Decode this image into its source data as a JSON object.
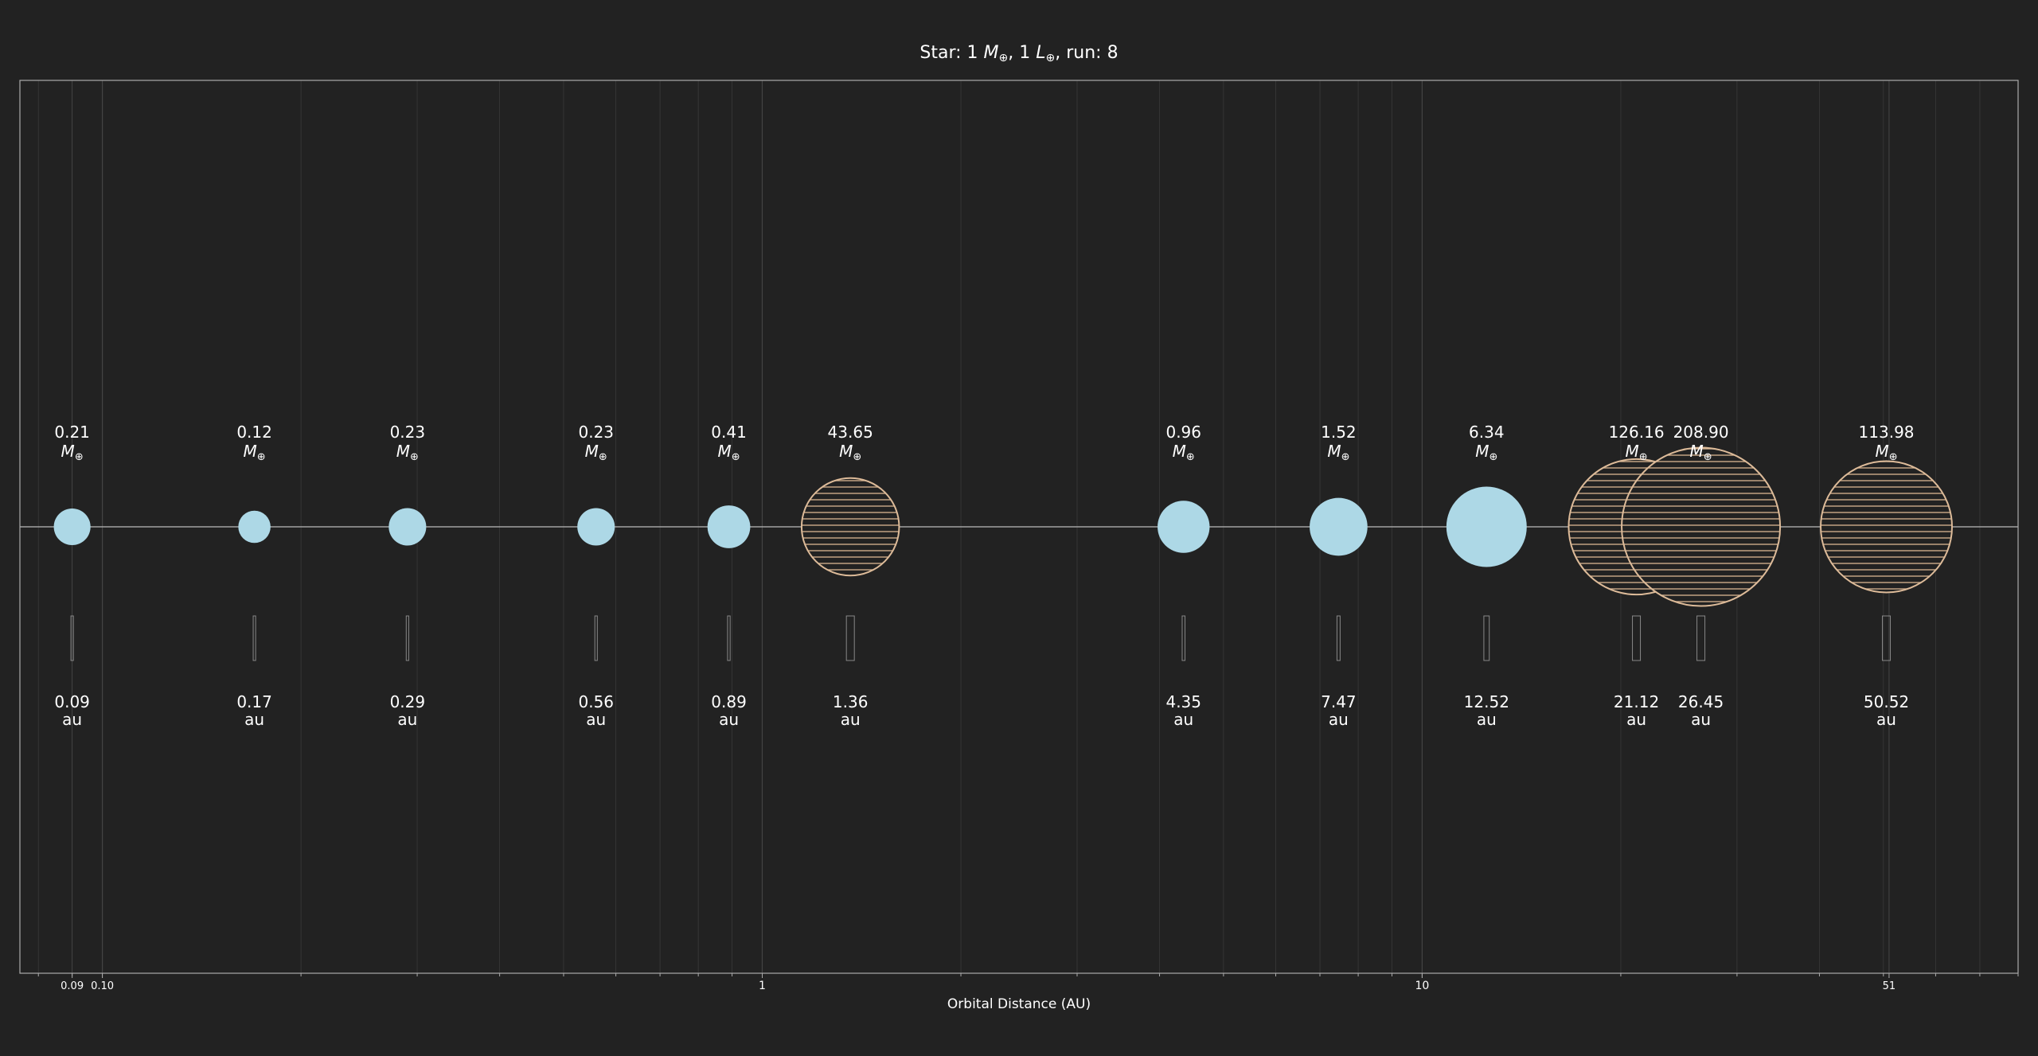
{
  "colors": {
    "background": "#222222",
    "axes_frame": "#aaaaaa",
    "grid": "#3a3a3a",
    "text": "#ffffff",
    "rocky_planet": "#add8e6",
    "giant_planet_outline": "#ddbb99",
    "giant_planet_hatch": "#ccaa88"
  },
  "chart_data": {
    "type": "scatter",
    "title": {
      "prefix": "Star: 1 ",
      "mass_symbol": "M",
      "sun_symbol": "⊕",
      "mid": ", 1 ",
      "lum_symbol": "L",
      "suffix": ", run: 8"
    },
    "xlabel": "Orbital Distance (AU)",
    "x_scale": "log",
    "xlim": [
      0.075,
      80
    ],
    "grid": true,
    "x_ticks": [
      {
        "value": 0.09,
        "label": "0.09",
        "major": false
      },
      {
        "value": 0.1,
        "label": "0.10",
        "major": false
      },
      {
        "value": 1,
        "label": "1",
        "major": true
      },
      {
        "value": 10,
        "label": "10",
        "major": true
      },
      {
        "value": 51,
        "label": "51",
        "major": false
      }
    ],
    "mass_unit_symbol": "M",
    "mass_unit_sub": "⊕",
    "distance_unit": "au",
    "planets": [
      {
        "distance_au": 0.09,
        "distance_label": "0.09",
        "mass_label": "0.21",
        "type": "rocky"
      },
      {
        "distance_au": 0.17,
        "distance_label": "0.17",
        "mass_label": "0.12",
        "type": "rocky"
      },
      {
        "distance_au": 0.29,
        "distance_label": "0.29",
        "mass_label": "0.23",
        "type": "rocky"
      },
      {
        "distance_au": 0.56,
        "distance_label": "0.56",
        "mass_label": "0.23",
        "type": "rocky"
      },
      {
        "distance_au": 0.89,
        "distance_label": "0.89",
        "mass_label": "0.41",
        "type": "rocky"
      },
      {
        "distance_au": 1.36,
        "distance_label": "1.36",
        "mass_label": "43.65",
        "type": "giant"
      },
      {
        "distance_au": 4.35,
        "distance_label": "4.35",
        "mass_label": "0.96",
        "type": "rocky"
      },
      {
        "distance_au": 7.47,
        "distance_label": "7.47",
        "mass_label": "1.52",
        "type": "rocky"
      },
      {
        "distance_au": 12.52,
        "distance_label": "12.52",
        "mass_label": "6.34",
        "type": "rocky"
      },
      {
        "distance_au": 21.12,
        "distance_label": "21.12",
        "mass_label": "126.16",
        "type": "giant"
      },
      {
        "distance_au": 26.45,
        "distance_label": "26.45",
        "mass_label": "208.90",
        "type": "giant"
      },
      {
        "distance_au": 50.52,
        "distance_label": "50.52",
        "mass_label": "113.98",
        "type": "giant"
      }
    ]
  }
}
